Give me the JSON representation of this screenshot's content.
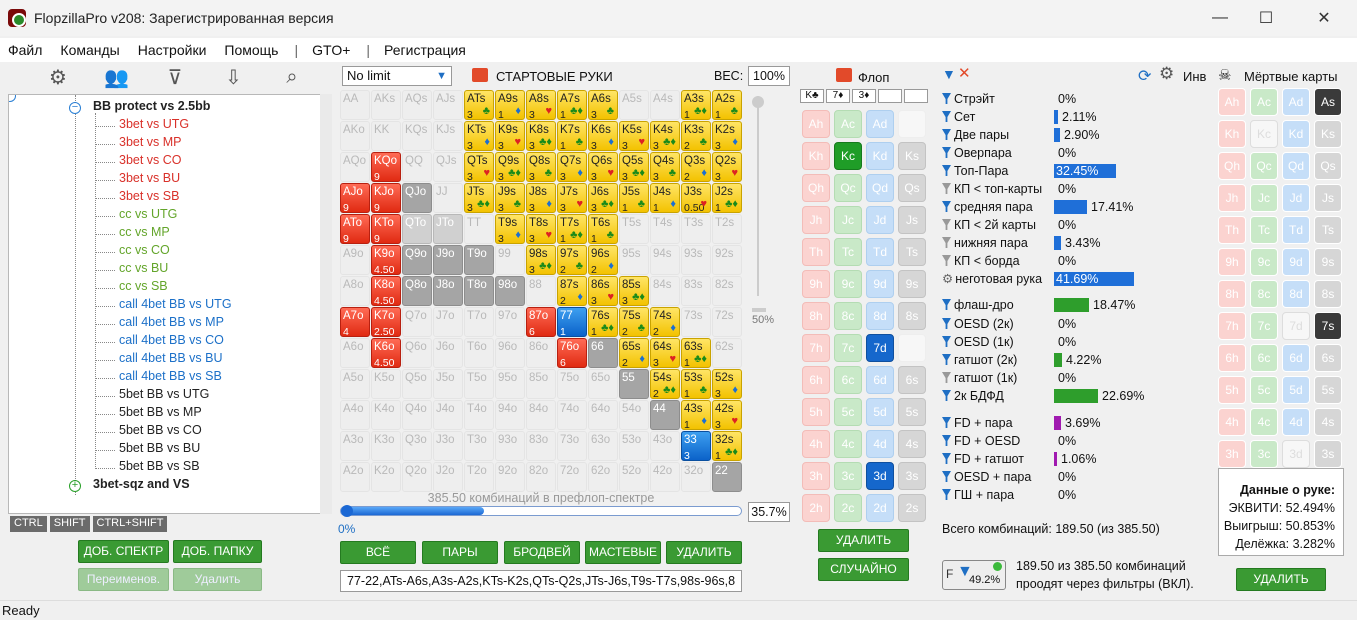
{
  "window": {
    "title": "FlopzillaPro v208: Зарегистрированная версия"
  },
  "menu": [
    "Файл",
    "Команды",
    "Настройки",
    "Помощь",
    "|",
    "GTO+",
    "|",
    "Регистрация"
  ],
  "tree": {
    "parent": "BB protect vs 2.5bb",
    "items": [
      {
        "label": "3bet vs UTG",
        "color": "red"
      },
      {
        "label": "3bet vs MP",
        "color": "red"
      },
      {
        "label": "3bet vs CO",
        "color": "red"
      },
      {
        "label": "3bet vs BU",
        "color": "red"
      },
      {
        "label": "3bet vs SB",
        "color": "red"
      },
      {
        "label": "cc vs UTG",
        "color": "green"
      },
      {
        "label": "cc vs MP",
        "color": "green"
      },
      {
        "label": "cc vs CO",
        "color": "green"
      },
      {
        "label": "cc vs BU",
        "color": "green"
      },
      {
        "label": "cc vs SB",
        "color": "green"
      },
      {
        "label": "call 4bet BB vs UTG",
        "color": "blue"
      },
      {
        "label": "call 4bet BB vs MP",
        "color": "blue"
      },
      {
        "label": "call 4bet BB vs CO",
        "color": "blue"
      },
      {
        "label": "call 4bet BB vs BU",
        "color": "blue"
      },
      {
        "label": "call 4bet BB vs SB",
        "color": "blue"
      },
      {
        "label": "5bet BB vs UTG",
        "color": "dark"
      },
      {
        "label": "5bet BB vs MP",
        "color": "dark"
      },
      {
        "label": "5bet BB vs CO",
        "color": "dark"
      },
      {
        "label": "5bet BB vs BU",
        "color": "dark"
      },
      {
        "label": "5bet BB vs SB",
        "color": "dark"
      }
    ],
    "sibling": "3bet-sqz and VS"
  },
  "keytabs": [
    "CTRL",
    "SHIFT",
    "CTRL+SHIFT"
  ],
  "left_buttons": {
    "add_spectrum": "ДОБ. СПЕКТР",
    "add_folder": "ДОБ. ПАПКУ",
    "rename": "Переименов.",
    "delete": "Удалить"
  },
  "range": {
    "mode": "No limit",
    "title": "СТАРТОВЫЕ РУКИ",
    "weight_label": "ВЕС:",
    "weight": "100%",
    "slider_label": "50%",
    "combos_text": "385.50 комбинаций в префлоп-спектре",
    "progress_start": "0%",
    "progress": "35.7%",
    "progress_value": 35.7,
    "range_string": "77-22,ATs-A6s,A3s-A2s,KTs-K2s,QTs-Q2s,JTs-J6s,T9s-T7s,98s-96s,8"
  },
  "range_buttons": {
    "all": "ВСЁ",
    "pairs": "ПАРЫ",
    "broadway": "БРОДВЕЙ",
    "suited": "МАСТЕВЫЕ",
    "delete": "УДАЛИТЬ"
  },
  "grid": [
    [
      [
        "AA",
        "",
        ""
      ],
      [
        "AKs",
        "",
        ""
      ],
      [
        "AQs",
        "",
        ""
      ],
      [
        "AJs",
        "",
        ""
      ],
      [
        "ATs",
        "y",
        "3"
      ],
      [
        "A9s",
        "y",
        "1"
      ],
      [
        "A8s",
        "y",
        "3"
      ],
      [
        "A7s",
        "y",
        "1"
      ],
      [
        "A6s",
        "y",
        "3"
      ],
      [
        "A5s",
        "",
        ""
      ],
      [
        "A4s",
        "",
        ""
      ],
      [
        "A3s",
        "y",
        "1"
      ],
      [
        "A2s",
        "y",
        "1"
      ]
    ],
    [
      [
        "AKo",
        "",
        ""
      ],
      [
        "KK",
        "",
        ""
      ],
      [
        "KQs",
        "",
        ""
      ],
      [
        "KJs",
        "",
        ""
      ],
      [
        "KTs",
        "y",
        "3"
      ],
      [
        "K9s",
        "y",
        "3"
      ],
      [
        "K8s",
        "y",
        "3"
      ],
      [
        "K7s",
        "y",
        "1"
      ],
      [
        "K6s",
        "y",
        "3"
      ],
      [
        "K5s",
        "y",
        "3"
      ],
      [
        "K4s",
        "y",
        "3"
      ],
      [
        "K3s",
        "y",
        "2"
      ],
      [
        "K2s",
        "y",
        "3"
      ]
    ],
    [
      [
        "AQo",
        "",
        ""
      ],
      [
        "KQo",
        "r",
        "9"
      ],
      [
        "QQ",
        "",
        ""
      ],
      [
        "QJs",
        "",
        ""
      ],
      [
        "QTs",
        "y",
        "3"
      ],
      [
        "Q9s",
        "y",
        "3"
      ],
      [
        "Q8s",
        "y",
        "3"
      ],
      [
        "Q7s",
        "y",
        "3"
      ],
      [
        "Q6s",
        "y",
        "3"
      ],
      [
        "Q5s",
        "y",
        "3"
      ],
      [
        "Q4s",
        "y",
        "3"
      ],
      [
        "Q3s",
        "y",
        "2"
      ],
      [
        "Q2s",
        "y",
        "3"
      ]
    ],
    [
      [
        "AJo",
        "r",
        "9"
      ],
      [
        "KJo",
        "r",
        "9"
      ],
      [
        "QJo",
        "g",
        ""
      ],
      [
        "JJ",
        "",
        ""
      ],
      [
        "JTs",
        "y",
        "3"
      ],
      [
        "J9s",
        "y",
        "3"
      ],
      [
        "J8s",
        "y",
        "3"
      ],
      [
        "J7s",
        "y",
        "3"
      ],
      [
        "J6s",
        "y",
        "3"
      ],
      [
        "J5s",
        "y",
        "1"
      ],
      [
        "J4s",
        "y",
        "1"
      ],
      [
        "J3s",
        "y",
        "0.50"
      ],
      [
        "J2s",
        "y",
        "1"
      ]
    ],
    [
      [
        "ATo",
        "r",
        "9"
      ],
      [
        "KTo",
        "r",
        "9"
      ],
      [
        "QTo",
        "lg",
        ""
      ],
      [
        "JTo",
        "lg",
        ""
      ],
      [
        "TT",
        "",
        ""
      ],
      [
        "T9s",
        "y",
        "3"
      ],
      [
        "T8s",
        "y",
        "3"
      ],
      [
        "T7s",
        "y",
        "1"
      ],
      [
        "T6s",
        "y",
        "1"
      ],
      [
        "T5s",
        "",
        ""
      ],
      [
        "T4s",
        "",
        ""
      ],
      [
        "T3s",
        "",
        ""
      ],
      [
        "T2s",
        "",
        ""
      ]
    ],
    [
      [
        "A9o",
        "",
        ""
      ],
      [
        "K9o",
        "r",
        "4.50"
      ],
      [
        "Q9o",
        "g",
        ""
      ],
      [
        "J9o",
        "g",
        ""
      ],
      [
        "T9o",
        "g",
        ""
      ],
      [
        "99",
        "",
        ""
      ],
      [
        "98s",
        "y",
        "3"
      ],
      [
        "97s",
        "y",
        "2"
      ],
      [
        "96s",
        "y",
        "2"
      ],
      [
        "95s",
        "",
        ""
      ],
      [
        "94s",
        "",
        ""
      ],
      [
        "93s",
        "",
        ""
      ],
      [
        "92s",
        "",
        ""
      ]
    ],
    [
      [
        "A8o",
        "",
        ""
      ],
      [
        "K8o",
        "r",
        "4.50"
      ],
      [
        "Q8o",
        "g",
        ""
      ],
      [
        "J8o",
        "g",
        ""
      ],
      [
        "T8o",
        "g",
        ""
      ],
      [
        "98o",
        "g",
        ""
      ],
      [
        "88",
        "",
        ""
      ],
      [
        "87s",
        "y",
        "2"
      ],
      [
        "86s",
        "y",
        "3"
      ],
      [
        "85s",
        "y",
        "3"
      ],
      [
        "84s",
        "",
        ""
      ],
      [
        "83s",
        "",
        ""
      ],
      [
        "82s",
        "",
        ""
      ]
    ],
    [
      [
        "A7o",
        "r",
        "4"
      ],
      [
        "K7o",
        "r",
        "2.50"
      ],
      [
        "Q7o",
        "",
        ""
      ],
      [
        "J7o",
        "",
        ""
      ],
      [
        "T7o",
        "",
        ""
      ],
      [
        "97o",
        "",
        ""
      ],
      [
        "87o",
        "r",
        "6"
      ],
      [
        "77",
        "b",
        "1"
      ],
      [
        "76s",
        "y",
        "1"
      ],
      [
        "75s",
        "y",
        "2"
      ],
      [
        "74s",
        "y",
        "2"
      ],
      [
        "73s",
        "",
        ""
      ],
      [
        "72s",
        "",
        ""
      ]
    ],
    [
      [
        "A6o",
        "",
        ""
      ],
      [
        "K6o",
        "r",
        "4.50"
      ],
      [
        "Q6o",
        "",
        ""
      ],
      [
        "J6o",
        "",
        ""
      ],
      [
        "T6o",
        "",
        ""
      ],
      [
        "96o",
        "",
        ""
      ],
      [
        "86o",
        "",
        ""
      ],
      [
        "76o",
        "r",
        "6"
      ],
      [
        "66",
        "g",
        ""
      ],
      [
        "65s",
        "y",
        "2"
      ],
      [
        "64s",
        "y",
        "3"
      ],
      [
        "63s",
        "y",
        "1"
      ],
      [
        "62s",
        "",
        ""
      ]
    ],
    [
      [
        "A5o",
        "",
        ""
      ],
      [
        "K5o",
        "",
        ""
      ],
      [
        "Q5o",
        "",
        ""
      ],
      [
        "J5o",
        "",
        ""
      ],
      [
        "T5o",
        "",
        ""
      ],
      [
        "95o",
        "",
        ""
      ],
      [
        "85o",
        "",
        ""
      ],
      [
        "75o",
        "",
        ""
      ],
      [
        "65o",
        "",
        ""
      ],
      [
        "55",
        "g",
        ""
      ],
      [
        "54s",
        "y",
        "2"
      ],
      [
        "53s",
        "y",
        "1"
      ],
      [
        "52s",
        "y",
        "3"
      ]
    ],
    [
      [
        "A4o",
        "",
        ""
      ],
      [
        "K4o",
        "",
        ""
      ],
      [
        "Q4o",
        "",
        ""
      ],
      [
        "J4o",
        "",
        ""
      ],
      [
        "T4o",
        "",
        ""
      ],
      [
        "94o",
        "",
        ""
      ],
      [
        "84o",
        "",
        ""
      ],
      [
        "74o",
        "",
        ""
      ],
      [
        "64o",
        "",
        ""
      ],
      [
        "54o",
        "",
        ""
      ],
      [
        "44",
        "g",
        ""
      ],
      [
        "43s",
        "y",
        "1"
      ],
      [
        "42s",
        "y",
        "3"
      ]
    ],
    [
      [
        "A3o",
        "",
        ""
      ],
      [
        "K3o",
        "",
        ""
      ],
      [
        "Q3o",
        "",
        ""
      ],
      [
        "J3o",
        "",
        ""
      ],
      [
        "T3o",
        "",
        ""
      ],
      [
        "93o",
        "",
        ""
      ],
      [
        "83o",
        "",
        ""
      ],
      [
        "73o",
        "",
        ""
      ],
      [
        "63o",
        "",
        ""
      ],
      [
        "53o",
        "",
        ""
      ],
      [
        "43o",
        "",
        ""
      ],
      [
        "33",
        "b",
        "3"
      ],
      [
        "32s",
        "y",
        "1"
      ]
    ],
    [
      [
        "A2o",
        "",
        ""
      ],
      [
        "K2o",
        "",
        ""
      ],
      [
        "Q2o",
        "",
        ""
      ],
      [
        "J2o",
        "",
        ""
      ],
      [
        "T2o",
        "",
        ""
      ],
      [
        "92o",
        "",
        ""
      ],
      [
        "82o",
        "",
        ""
      ],
      [
        "72o",
        "",
        ""
      ],
      [
        "62o",
        "",
        ""
      ],
      [
        "52o",
        "",
        ""
      ],
      [
        "42o",
        "",
        ""
      ],
      [
        "32o",
        "",
        ""
      ],
      [
        "22",
        "g",
        ""
      ]
    ]
  ],
  "flop": {
    "title": "Флоп",
    "board": [
      "K♣",
      "7♦",
      "3♦"
    ],
    "ranks": [
      "A",
      "K",
      "Q",
      "J",
      "T",
      "9",
      "8",
      "7",
      "6",
      "5",
      "4",
      "3",
      "2"
    ],
    "selected": [
      "Kc",
      "7d",
      "3d"
    ],
    "delete": "УДАЛИТЬ",
    "random": "СЛУЧАЙНО"
  },
  "stats": {
    "inv_label": "Инв",
    "rows": [
      {
        "label": "Стрэйт",
        "value": "0%",
        "pct": 0,
        "kind": "b"
      },
      {
        "label": "Сет",
        "value": "2.11%",
        "pct": 2.11,
        "kind": "b"
      },
      {
        "label": "Две пары",
        "value": "2.90%",
        "pct": 2.9,
        "kind": "b"
      },
      {
        "label": "Оверпара",
        "value": "0%",
        "pct": 0,
        "kind": "b"
      },
      {
        "label": "Топ-Пара",
        "value": "32.45%",
        "pct": 32.45,
        "kind": "b",
        "inbar": true
      },
      {
        "label": "КП < топ-карты",
        "value": "0%",
        "pct": 0,
        "kind": "b",
        "gray": true
      },
      {
        "label": "средняя пара",
        "value": "17.41%",
        "pct": 17.41,
        "kind": "b"
      },
      {
        "label": "КП < 2й карты",
        "value": "0%",
        "pct": 0,
        "kind": "b",
        "gray": true
      },
      {
        "label": "нижняя пара",
        "value": "3.43%",
        "pct": 3.43,
        "kind": "b",
        "gray": true
      },
      {
        "label": "КП < борда",
        "value": "0%",
        "pct": 0,
        "kind": "b",
        "gray": true
      },
      {
        "label": "неготовая рука",
        "value": "41.69%",
        "pct": 41.69,
        "kind": "b",
        "inbar": true,
        "gear": true
      },
      {
        "label": "флаш-дро",
        "value": "18.47%",
        "pct": 18.47,
        "kind": "g"
      },
      {
        "label": "OESD (2к)",
        "value": "0%",
        "pct": 0,
        "kind": "g"
      },
      {
        "label": "OESD (1к)",
        "value": "0%",
        "pct": 0,
        "kind": "g"
      },
      {
        "label": "гатшот (2к)",
        "value": "4.22%",
        "pct": 4.22,
        "kind": "g"
      },
      {
        "label": "гатшот (1к)",
        "value": "0%",
        "pct": 0,
        "kind": "g",
        "gray": true
      },
      {
        "label": "2к БДФД",
        "value": "22.69%",
        "pct": 22.69,
        "kind": "g"
      },
      {
        "label": "FD + пара",
        "value": "3.69%",
        "pct": 3.69,
        "kind": "p"
      },
      {
        "label": "FD + OESD",
        "value": "0%",
        "pct": 0,
        "kind": "p"
      },
      {
        "label": "FD + гатшот",
        "value": "1.06%",
        "pct": 1.06,
        "kind": "p"
      },
      {
        "label": "OESD + пара",
        "value": "0%",
        "pct": 0,
        "kind": "p"
      },
      {
        "label": "ГШ + пара",
        "value": "0%",
        "pct": 0,
        "kind": "p"
      }
    ],
    "total": "Всего комбинаций: 189.50 (из 385.50)",
    "filter_pct": "49.2%",
    "filter_text_1": "189.50 из 385.50 комбинаций",
    "filter_text_2": "проодят через фильтры (ВКЛ)."
  },
  "dead": {
    "title": "Мёртвые карты",
    "selected": [
      "As",
      "7s"
    ],
    "hand_title": "Данные о руке:",
    "equity": "ЭКВИТИ: 52.494%",
    "win": "Выигрыш: 50.853%",
    "tie": "Делёжка: 3.282%",
    "delete": "УДАЛИТЬ"
  },
  "status": "Ready",
  "colors": {
    "yellow": "#f3c200",
    "red": "#e02a12",
    "blue": "#0b62c9",
    "green": "#2e9e2c",
    "purple": "#a01ab0"
  }
}
